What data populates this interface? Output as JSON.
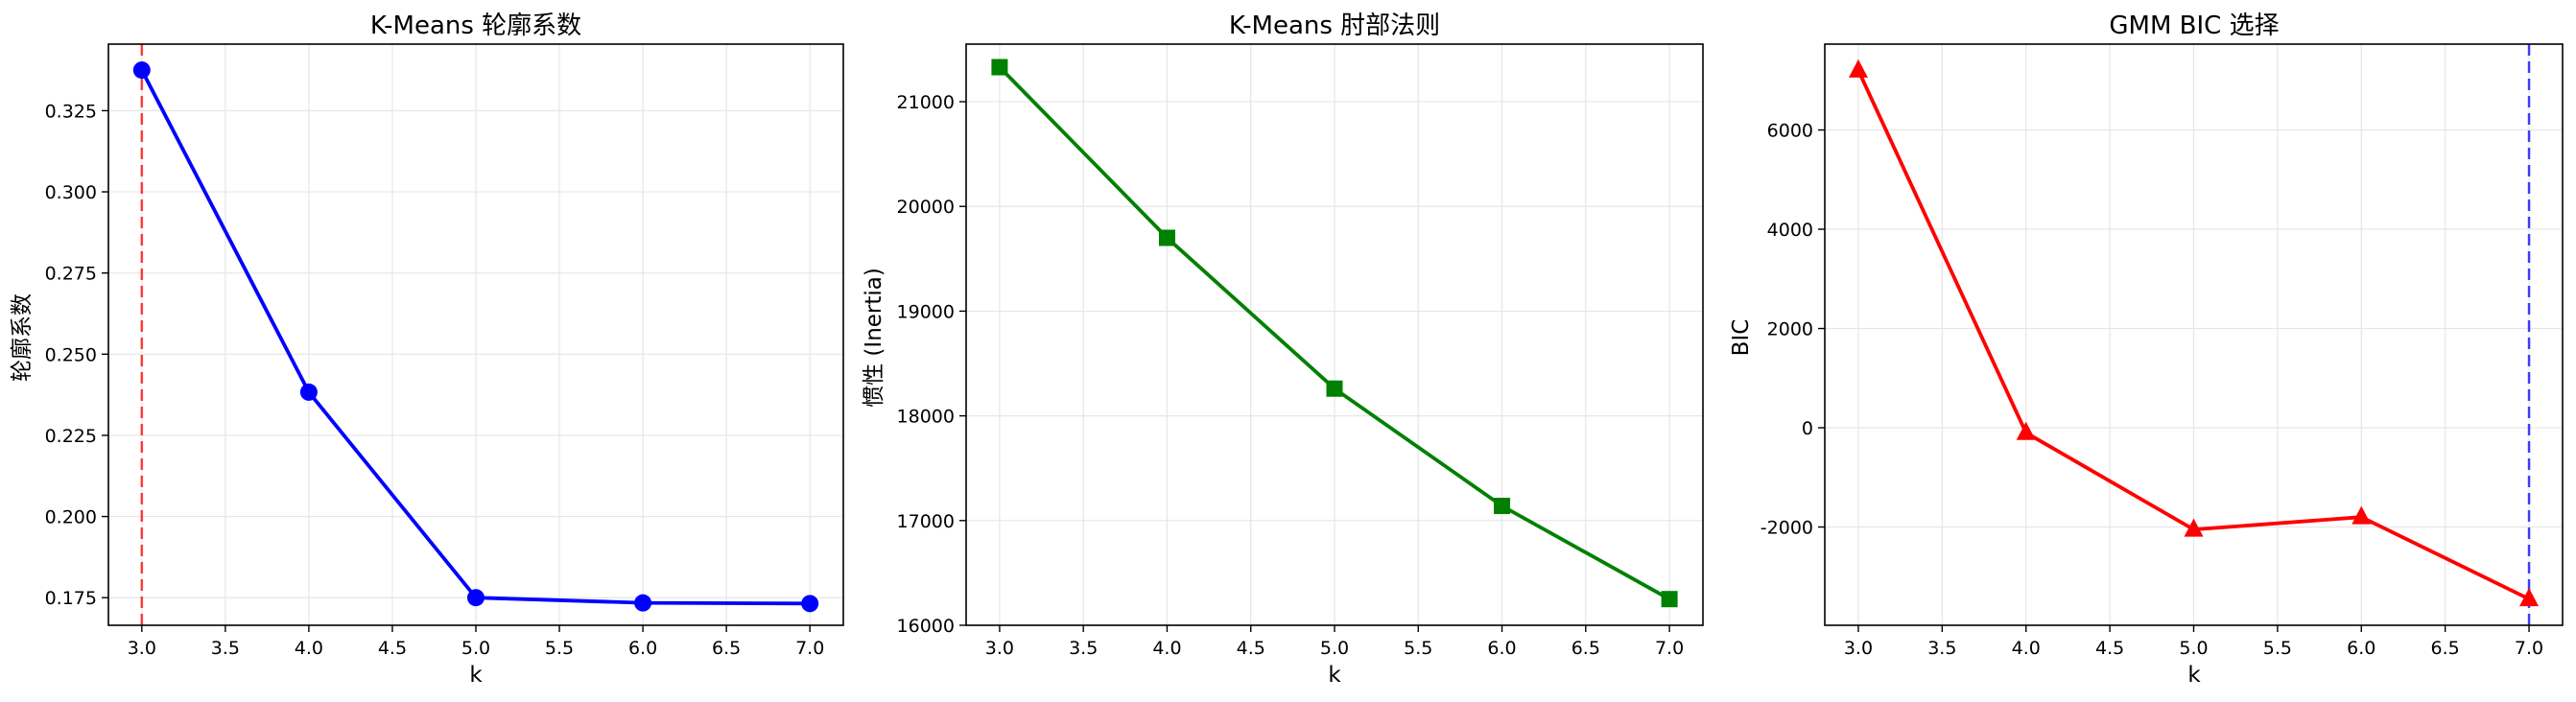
{
  "chart_data": [
    {
      "type": "line",
      "title": "K-Means 轮廓系数",
      "xlabel": "k",
      "ylabel": "轮廓系数",
      "x": [
        3,
        4,
        5,
        6,
        7
      ],
      "series": [
        {
          "values": [
            0.3375,
            0.2383,
            0.175,
            0.1734,
            0.1732
          ],
          "color": "#0000ff",
          "marker": "circle"
        }
      ],
      "xlim": [
        2.8,
        7.2
      ],
      "ylim": [
        0.1665,
        0.3455
      ],
      "xticks": [
        3.0,
        3.5,
        4.0,
        4.5,
        5.0,
        5.5,
        6.0,
        6.5,
        7.0
      ],
      "xtick_labels": [
        "3.0",
        "3.5",
        "4.0",
        "4.5",
        "5.0",
        "5.5",
        "6.0",
        "6.5",
        "7.0"
      ],
      "yticks": [
        0.175,
        0.2,
        0.225,
        0.25,
        0.275,
        0.3,
        0.325
      ],
      "ytick_labels": [
        "0.175",
        "0.200",
        "0.225",
        "0.250",
        "0.275",
        "0.300",
        "0.325"
      ],
      "vline": {
        "x": 3,
        "color": "#ff0000",
        "style": "dashed"
      },
      "grid": true
    },
    {
      "type": "line",
      "title": "K-Means 肘部法则",
      "xlabel": "k",
      "ylabel": "惯性 (Inertia)",
      "x": [
        3,
        4,
        5,
        6,
        7
      ],
      "series": [
        {
          "values": [
            21330,
            19700,
            18260,
            17140,
            16250
          ],
          "color": "#008000",
          "marker": "square"
        }
      ],
      "xlim": [
        2.8,
        7.2
      ],
      "ylim": [
        16000,
        21550
      ],
      "xticks": [
        3.0,
        3.5,
        4.0,
        4.5,
        5.0,
        5.5,
        6.0,
        6.5,
        7.0
      ],
      "xtick_labels": [
        "3.0",
        "3.5",
        "4.0",
        "4.5",
        "5.0",
        "5.5",
        "6.0",
        "6.5",
        "7.0"
      ],
      "yticks": [
        16000,
        17000,
        18000,
        19000,
        20000,
        21000
      ],
      "ytick_labels": [
        "16000",
        "17000",
        "18000",
        "19000",
        "20000",
        "21000"
      ],
      "grid": true
    },
    {
      "type": "line",
      "title": "GMM BIC 选择",
      "xlabel": "k",
      "ylabel": "BIC",
      "x": [
        3,
        4,
        5,
        6,
        7
      ],
      "series": [
        {
          "values": [
            7200,
            -100,
            -2050,
            -1800,
            -3450
          ],
          "color": "#ff0000",
          "marker": "triangle"
        }
      ],
      "xlim": [
        2.8,
        7.2
      ],
      "ylim": [
        -3980,
        7730
      ],
      "xticks": [
        3.0,
        3.5,
        4.0,
        4.5,
        5.0,
        5.5,
        6.0,
        6.5,
        7.0
      ],
      "xtick_labels": [
        "3.0",
        "3.5",
        "4.0",
        "4.5",
        "5.0",
        "5.5",
        "6.0",
        "6.5",
        "7.0"
      ],
      "yticks": [
        -2000,
        0,
        2000,
        4000,
        6000
      ],
      "ytick_labels": [
        "-2000",
        "0",
        "2000",
        "4000",
        "6000"
      ],
      "vline": {
        "x": 7,
        "color": "#0000ff",
        "style": "dashed"
      },
      "grid": true
    }
  ]
}
